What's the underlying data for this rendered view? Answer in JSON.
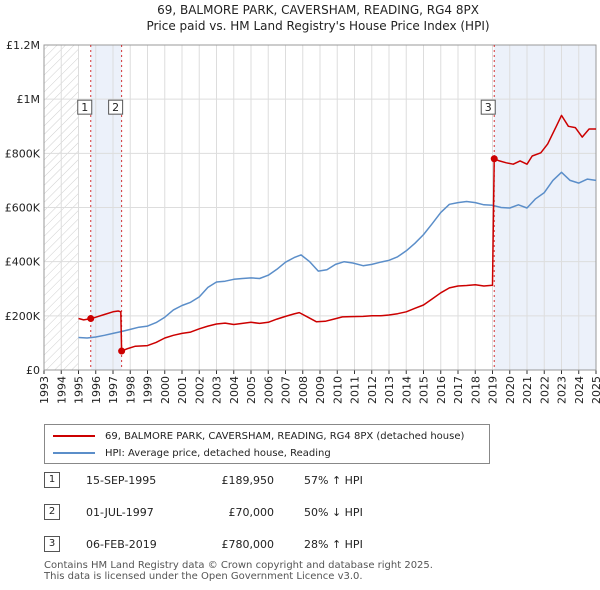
{
  "chart_data": {
    "type": "line",
    "title": "69, BALMORE PARK, CAVERSHAM, READING, RG4 8PX",
    "subtitle": "Price paid vs. HM Land Registry's House Price Index (HPI)",
    "xlabel": "",
    "ylabel": "",
    "xlim": [
      1993,
      2025
    ],
    "ylim": [
      0,
      1200000
    ],
    "x_ticks": [
      "1993",
      "1994",
      "1995",
      "1996",
      "1997",
      "1998",
      "1999",
      "2000",
      "2001",
      "2002",
      "2003",
      "2004",
      "2005",
      "2006",
      "2007",
      "2008",
      "2009",
      "2010",
      "2011",
      "2012",
      "2013",
      "2014",
      "2015",
      "2016",
      "2017",
      "2018",
      "2019",
      "2020",
      "2021",
      "2022",
      "2023",
      "2024",
      "2025"
    ],
    "y_ticks": [
      {
        "value": 0,
        "label": "£0"
      },
      {
        "value": 200000,
        "label": "£200K"
      },
      {
        "value": 400000,
        "label": "£400K"
      },
      {
        "value": 600000,
        "label": "£600K"
      },
      {
        "value": 800000,
        "label": "£800K"
      },
      {
        "value": 1000000,
        "label": "£1M"
      },
      {
        "value": 1200000,
        "label": "£1.2M"
      }
    ],
    "grid": true,
    "hatch_range": [
      1993,
      1995.0
    ],
    "series": [
      {
        "name": "69, BALMORE PARK, CAVERSHAM, READING, RG4 8PX (detached house)",
        "color": "#cc0000",
        "points": [
          [
            1995.0,
            190000
          ],
          [
            1995.3,
            185000
          ],
          [
            1995.71,
            189950
          ],
          [
            1996.0,
            195000
          ],
          [
            1996.5,
            205000
          ],
          [
            1997.0,
            215000
          ],
          [
            1997.3,
            218000
          ],
          [
            1997.45,
            215000
          ],
          [
            1997.5,
            70000
          ],
          [
            1997.8,
            78000
          ],
          [
            1998.3,
            88000
          ],
          [
            1999.0,
            90000
          ],
          [
            1999.5,
            102000
          ],
          [
            2000.0,
            118000
          ],
          [
            2000.5,
            128000
          ],
          [
            2001.0,
            135000
          ],
          [
            2001.5,
            140000
          ],
          [
            2002.0,
            152000
          ],
          [
            2002.5,
            162000
          ],
          [
            2003.0,
            170000
          ],
          [
            2003.5,
            173000
          ],
          [
            2004.0,
            168000
          ],
          [
            2004.5,
            172000
          ],
          [
            2005.0,
            176000
          ],
          [
            2005.5,
            172000
          ],
          [
            2006.0,
            176000
          ],
          [
            2006.5,
            188000
          ],
          [
            2007.0,
            198000
          ],
          [
            2007.5,
            207000
          ],
          [
            2007.8,
            212000
          ],
          [
            2008.3,
            195000
          ],
          [
            2008.8,
            178000
          ],
          [
            2009.3,
            180000
          ],
          [
            2009.8,
            188000
          ],
          [
            2010.3,
            196000
          ],
          [
            2010.8,
            197000
          ],
          [
            2011.5,
            198000
          ],
          [
            2012.0,
            200000
          ],
          [
            2012.5,
            200000
          ],
          [
            2013.0,
            203000
          ],
          [
            2013.5,
            208000
          ],
          [
            2014.0,
            215000
          ],
          [
            2014.5,
            228000
          ],
          [
            2015.0,
            240000
          ],
          [
            2015.5,
            262000
          ],
          [
            2016.0,
            285000
          ],
          [
            2016.5,
            303000
          ],
          [
            2017.0,
            310000
          ],
          [
            2017.5,
            312000
          ],
          [
            2018.0,
            315000
          ],
          [
            2018.5,
            310000
          ],
          [
            2019.0,
            313000
          ],
          [
            2019.1,
            780000
          ],
          [
            2019.4,
            772000
          ],
          [
            2019.8,
            765000
          ],
          [
            2020.2,
            760000
          ],
          [
            2020.6,
            772000
          ],
          [
            2021.0,
            760000
          ],
          [
            2021.3,
            790000
          ],
          [
            2021.8,
            802000
          ],
          [
            2022.2,
            835000
          ],
          [
            2022.7,
            900000
          ],
          [
            2023.0,
            940000
          ],
          [
            2023.4,
            900000
          ],
          [
            2023.8,
            895000
          ],
          [
            2024.2,
            860000
          ],
          [
            2024.6,
            890000
          ],
          [
            2025.0,
            890000
          ]
        ]
      },
      {
        "name": "HPI: Average price, detached house, Reading",
        "color": "#5b8ec9",
        "points": [
          [
            1995.0,
            120000
          ],
          [
            1995.5,
            118000
          ],
          [
            1996.0,
            122000
          ],
          [
            1996.5,
            128000
          ],
          [
            1997.0,
            135000
          ],
          [
            1997.5,
            142000
          ],
          [
            1998.0,
            150000
          ],
          [
            1998.5,
            158000
          ],
          [
            1999.0,
            162000
          ],
          [
            1999.5,
            175000
          ],
          [
            2000.0,
            195000
          ],
          [
            2000.5,
            222000
          ],
          [
            2001.0,
            238000
          ],
          [
            2001.5,
            250000
          ],
          [
            2002.0,
            270000
          ],
          [
            2002.5,
            305000
          ],
          [
            2003.0,
            325000
          ],
          [
            2003.5,
            328000
          ],
          [
            2004.0,
            335000
          ],
          [
            2004.5,
            338000
          ],
          [
            2005.0,
            340000
          ],
          [
            2005.5,
            338000
          ],
          [
            2006.0,
            350000
          ],
          [
            2006.5,
            372000
          ],
          [
            2007.0,
            398000
          ],
          [
            2007.5,
            415000
          ],
          [
            2007.9,
            425000
          ],
          [
            2008.4,
            400000
          ],
          [
            2008.9,
            365000
          ],
          [
            2009.4,
            370000
          ],
          [
            2009.9,
            390000
          ],
          [
            2010.4,
            400000
          ],
          [
            2010.9,
            395000
          ],
          [
            2011.5,
            385000
          ],
          [
            2012.0,
            390000
          ],
          [
            2012.5,
            398000
          ],
          [
            2013.0,
            405000
          ],
          [
            2013.5,
            418000
          ],
          [
            2014.0,
            440000
          ],
          [
            2014.5,
            468000
          ],
          [
            2015.0,
            500000
          ],
          [
            2015.5,
            540000
          ],
          [
            2016.0,
            582000
          ],
          [
            2016.5,
            612000
          ],
          [
            2017.0,
            618000
          ],
          [
            2017.5,
            622000
          ],
          [
            2018.0,
            618000
          ],
          [
            2018.5,
            610000
          ],
          [
            2019.0,
            608000
          ],
          [
            2019.5,
            600000
          ],
          [
            2020.0,
            598000
          ],
          [
            2020.5,
            610000
          ],
          [
            2021.0,
            598000
          ],
          [
            2021.5,
            632000
          ],
          [
            2022.0,
            655000
          ],
          [
            2022.5,
            700000
          ],
          [
            2023.0,
            730000
          ],
          [
            2023.5,
            700000
          ],
          [
            2024.0,
            690000
          ],
          [
            2024.5,
            705000
          ],
          [
            2025.0,
            700000
          ]
        ]
      }
    ],
    "sales": [
      {
        "num": "1",
        "year": 1995.71,
        "price": 189950
      },
      {
        "num": "2",
        "year": 1997.5,
        "price": 70000
      },
      {
        "num": "3",
        "year": 2019.1,
        "price": 780000
      }
    ]
  },
  "legend": {
    "property_label": "69, BALMORE PARK, CAVERSHAM, READING, RG4 8PX (detached house)",
    "hpi_label": "HPI: Average price, detached house, Reading",
    "property_color": "#cc0000",
    "hpi_color": "#5b8ec9"
  },
  "sales_table": [
    {
      "num": "1",
      "date": "15-SEP-1995",
      "price": "£189,950",
      "hpi": "57% ↑ HPI"
    },
    {
      "num": "2",
      "date": "01-JUL-1997",
      "price": "£70,000",
      "hpi": "50% ↓ HPI"
    },
    {
      "num": "3",
      "date": "06-FEB-2019",
      "price": "£780,000",
      "hpi": "28% ↑ HPI"
    }
  ],
  "footer": {
    "line1": "Contains HM Land Registry data © Crown copyright and database right 2025.",
    "line2": "This data is licensed under the Open Government Licence v3.0."
  }
}
